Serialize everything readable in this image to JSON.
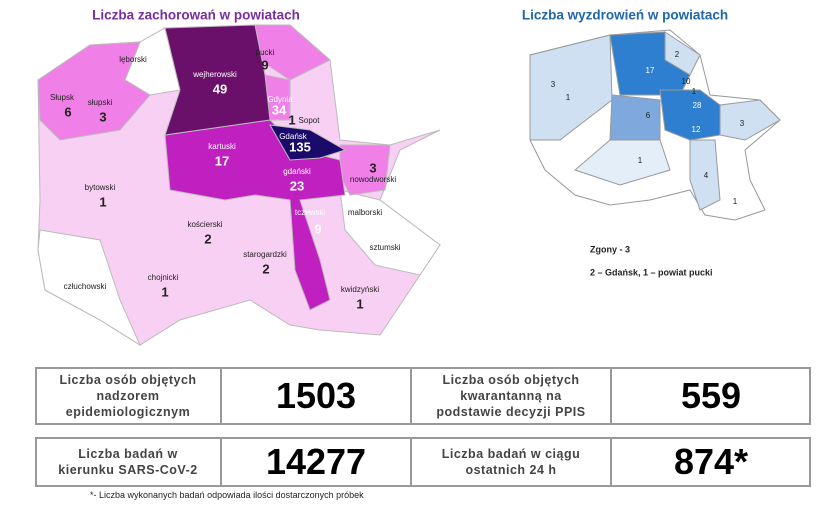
{
  "left_map": {
    "title": "Liczba zachorowań w powiatach",
    "regions": [
      {
        "name": "lęborski"
      },
      {
        "name": "wejherowski",
        "value": 49
      },
      {
        "name": "pucki",
        "value": 9
      },
      {
        "name": "słupski",
        "value": 3
      },
      {
        "name": "Słupsk",
        "value": 6
      },
      {
        "name": "Gdynia",
        "value": 34
      },
      {
        "name": "Sopot",
        "value": 1
      },
      {
        "name": "Gdańsk",
        "value": 135
      },
      {
        "name": "kartuski",
        "value": 17
      },
      {
        "name": "gdański",
        "value": 23
      },
      {
        "name": "nowodworski",
        "value": 3
      },
      {
        "name": "bytowski",
        "value": 1
      },
      {
        "name": "kościerski",
        "value": 2
      },
      {
        "name": "tczewski",
        "value": 9
      },
      {
        "name": "malborski"
      },
      {
        "name": "sztumski"
      },
      {
        "name": "starogardzki",
        "value": 2
      },
      {
        "name": "chojnicki",
        "value": 1
      },
      {
        "name": "człuchowski"
      },
      {
        "name": "kwidzyński",
        "value": 1
      }
    ]
  },
  "right_map": {
    "title": "Liczba wyzdrowień w powiatach",
    "labels": [
      3,
      1,
      17,
      2,
      10,
      1,
      28,
      6,
      12,
      3,
      1,
      4,
      1
    ],
    "deaths": "Zgony - 3",
    "deaths_detail": "2 – Gdańsk, 1 – powiat pucki"
  },
  "table": {
    "rows": [
      [
        "Liczba osób objętych nadzorem epidemiologicznym",
        1503,
        "Liczba osób objętych kwarantanną na podstawie decyzji PPIS",
        559
      ],
      [
        "Liczba badań w kierunku SARS-CoV-2",
        14277,
        "Liczba badań w ciągu ostatnich 24 h",
        "874*"
      ]
    ],
    "footnote": "*- Liczba wykonanych badań odpowiada ilości dostarczonych próbek"
  }
}
